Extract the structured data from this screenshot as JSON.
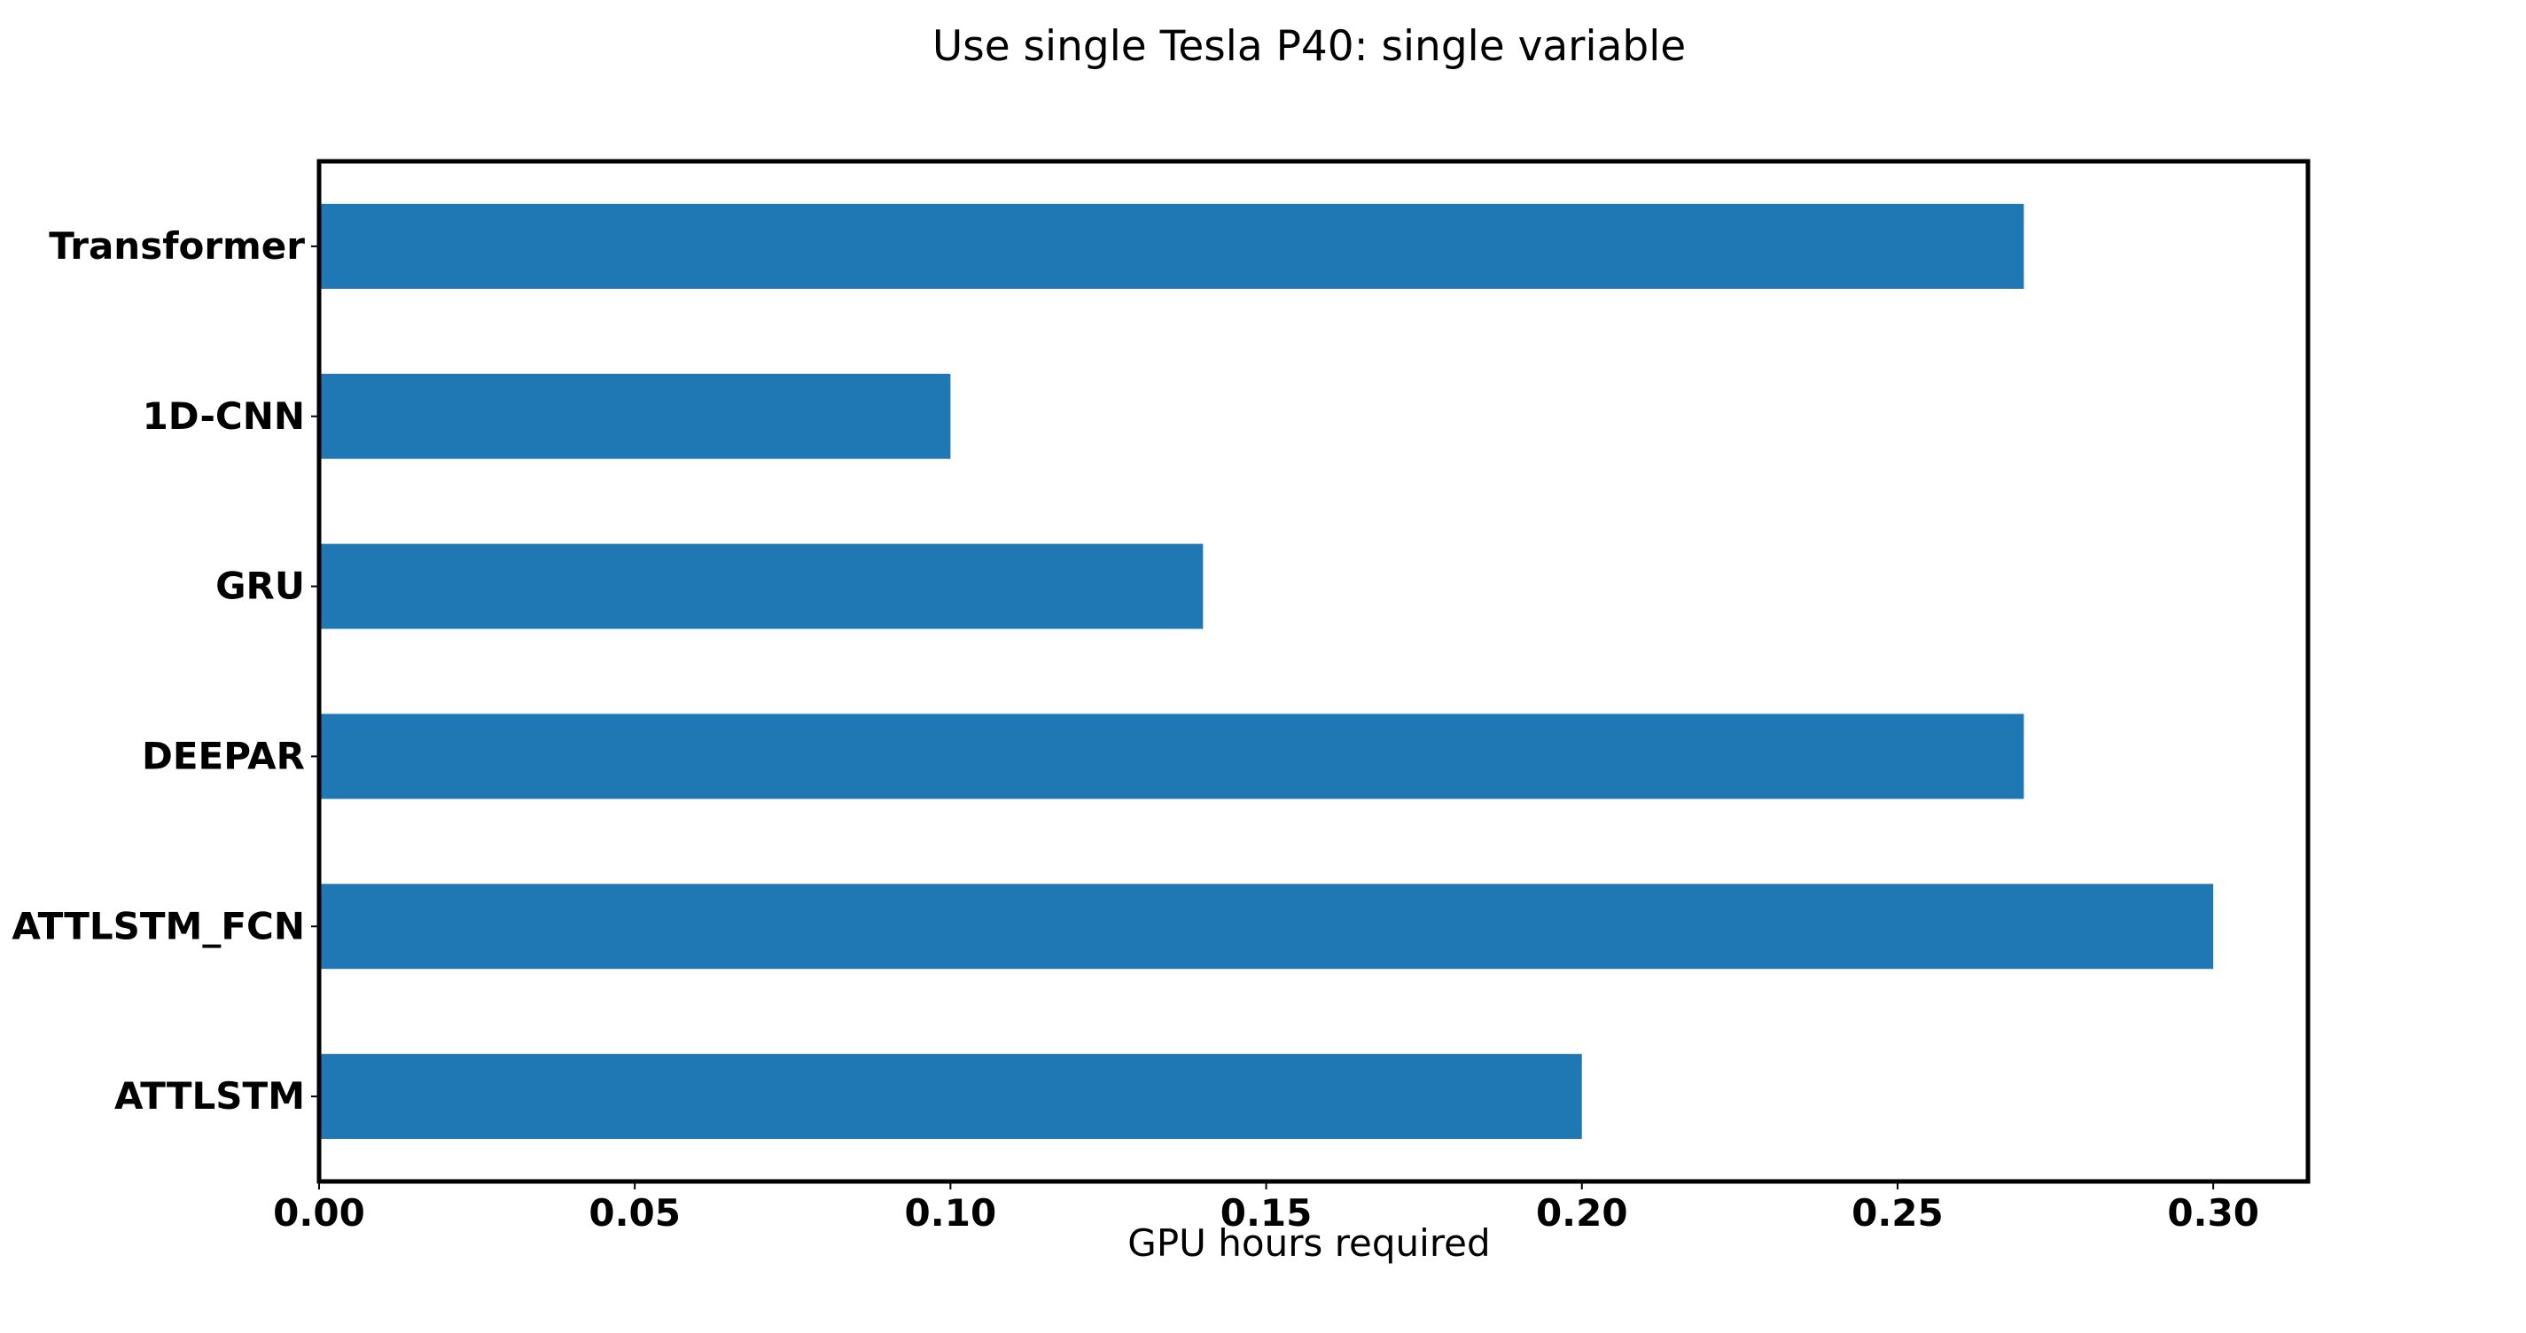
{
  "chart_data": {
    "type": "bar",
    "orientation": "horizontal",
    "title": "Use single Tesla P40: single variable",
    "xlabel": "GPU hours required",
    "ylabel": "",
    "categories": [
      "Transformer",
      "1D-CNN",
      "GRU",
      "DEEPAR",
      "ATTLSTM_FCN",
      "ATTLSTM"
    ],
    "values": [
      0.27,
      0.1,
      0.14,
      0.27,
      0.3,
      0.2
    ],
    "xlim": [
      0,
      0.315
    ],
    "xticks": [
      "0.00",
      "0.05",
      "0.10",
      "0.15",
      "0.20",
      "0.25",
      "0.30"
    ],
    "bar_color": "#1f77b4",
    "grid": false,
    "legend": "none"
  }
}
